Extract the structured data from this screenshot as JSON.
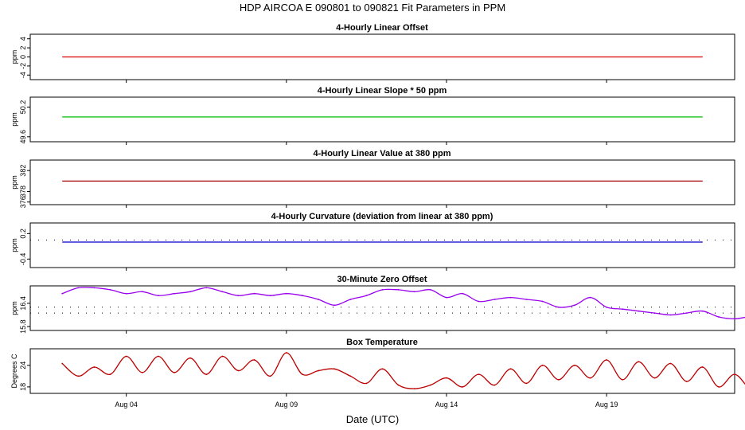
{
  "main_title": "HDP   AIRCOA E   090801 to 090821   Fit Parameters in PPM",
  "xlabel": "Date (UTC)",
  "x_ticks": [
    "Aug 04",
    "Aug 09",
    "Aug 14",
    "Aug 19"
  ],
  "chart_data": [
    {
      "type": "line",
      "title": "4-Hourly Linear Offset",
      "ylabel": "ppm",
      "y_ticks": [
        "4",
        "2",
        "0",
        "-2",
        "-4"
      ],
      "ylim": [
        -5,
        5
      ],
      "xlim": [
        "2009-08-01",
        "2009-08-23"
      ],
      "color": "#dd0000",
      "series": [
        {
          "x": [
            "2009-08-02",
            "2009-08-22"
          ],
          "values": [
            0,
            0
          ]
        }
      ]
    },
    {
      "type": "line",
      "title": "4-Hourly Linear Slope * 50 ppm",
      "ylabel": "ppm",
      "y_ticks": [
        "50.2",
        "49.6"
      ],
      "ylim": [
        49.5,
        50.4
      ],
      "xlim": [
        "2009-08-01",
        "2009-08-23"
      ],
      "color": "#00bb00",
      "series": [
        {
          "x": [
            "2009-08-02",
            "2009-08-22"
          ],
          "values": [
            50.0,
            50.0
          ]
        }
      ]
    },
    {
      "type": "line",
      "title": "4-Hourly Linear Value at 380 ppm",
      "ylabel": "ppm",
      "y_ticks": [
        "382",
        "378",
        "376"
      ],
      "ylim": [
        375.5,
        384
      ],
      "xlim": [
        "2009-08-01",
        "2009-08-23"
      ],
      "color": "#aa0000",
      "series": [
        {
          "x": [
            "2009-08-02",
            "2009-08-22"
          ],
          "values": [
            380,
            380
          ]
        }
      ]
    },
    {
      "type": "line",
      "title": "4-Hourly Curvature (deviation from linear at 380 ppm)",
      "ylabel": "ppm",
      "y_ticks": [
        "0.2",
        "-0.4"
      ],
      "ylim": [
        -0.6,
        0.45
      ],
      "xlim": [
        "2009-08-01",
        "2009-08-23"
      ],
      "color": "#0000cc",
      "reference_dotted": 0.05,
      "series": [
        {
          "x": [
            "2009-08-02",
            "2009-08-22"
          ],
          "values": [
            0,
            0
          ]
        }
      ]
    },
    {
      "type": "line",
      "title": "30-Minute Zero Offset",
      "ylabel": "ppm",
      "y_ticks": [
        "16.4",
        "15.8"
      ],
      "ylim": [
        15.7,
        16.85
      ],
      "xlim": [
        "2009-08-01",
        "2009-08-23"
      ],
      "color": "#9900ee",
      "reference_dotted": [
        16.3,
        16.15
      ],
      "series": [
        {
          "x_start": "2009-08-02",
          "step_days": 0.5,
          "values": [
            16.65,
            16.8,
            16.8,
            16.75,
            16.65,
            16.7,
            16.6,
            16.65,
            16.7,
            16.8,
            16.7,
            16.6,
            16.65,
            16.6,
            16.65,
            16.6,
            16.5,
            16.35,
            16.5,
            16.6,
            16.75,
            16.75,
            16.7,
            16.75,
            16.55,
            16.65,
            16.45,
            16.5,
            16.55,
            16.5,
            16.45,
            16.3,
            16.35,
            16.55,
            16.3,
            16.25,
            16.2,
            16.15,
            16.1,
            16.15,
            16.2,
            16.05,
            16.0,
            16.05,
            15.95,
            16.05,
            16.05,
            15.95,
            16.1,
            16.05,
            16.1,
            16.15,
            16.25,
            16.2,
            16.15,
            16.1,
            16.15,
            16.25,
            16.35,
            16.1,
            16.0,
            15.95,
            15.9,
            15.9,
            15.9,
            16.0,
            15.95,
            15.85,
            15.9,
            15.85,
            15.75,
            15.75,
            15.75,
            15.7,
            15.7
          ]
        }
      ]
    },
    {
      "type": "line",
      "title": "Box Temperature",
      "ylabel": "Degrees C",
      "y_ticks": [
        "24",
        "18"
      ],
      "ylim": [
        16.2,
        28.6
      ],
      "xlim": [
        "2009-08-01",
        "2009-08-23"
      ],
      "color": "#bb0000",
      "series": [
        {
          "x_start": "2009-08-02",
          "step_days": 0.5,
          "values": [
            24.5,
            21.0,
            23.5,
            21.5,
            26.5,
            22.0,
            26.5,
            22.0,
            26.0,
            21.5,
            26.5,
            22.5,
            25.5,
            21.0,
            27.5,
            21.5,
            22.5,
            23.0,
            21.0,
            19.0,
            23.0,
            18.5,
            17.5,
            18.5,
            20.5,
            18.0,
            21.5,
            18.5,
            23.0,
            19.0,
            24.0,
            20.0,
            24.0,
            20.5,
            25.5,
            20.0,
            25.0,
            20.5,
            24.5,
            19.5,
            23.5,
            18.0,
            21.5,
            17.5,
            19.0,
            17.0,
            23.5,
            19.0,
            22.5,
            18.5,
            23.0,
            19.5,
            23.5,
            18.5,
            23.0,
            20.0,
            25.0,
            21.0,
            22.0,
            26.5
          ]
        }
      ]
    }
  ]
}
